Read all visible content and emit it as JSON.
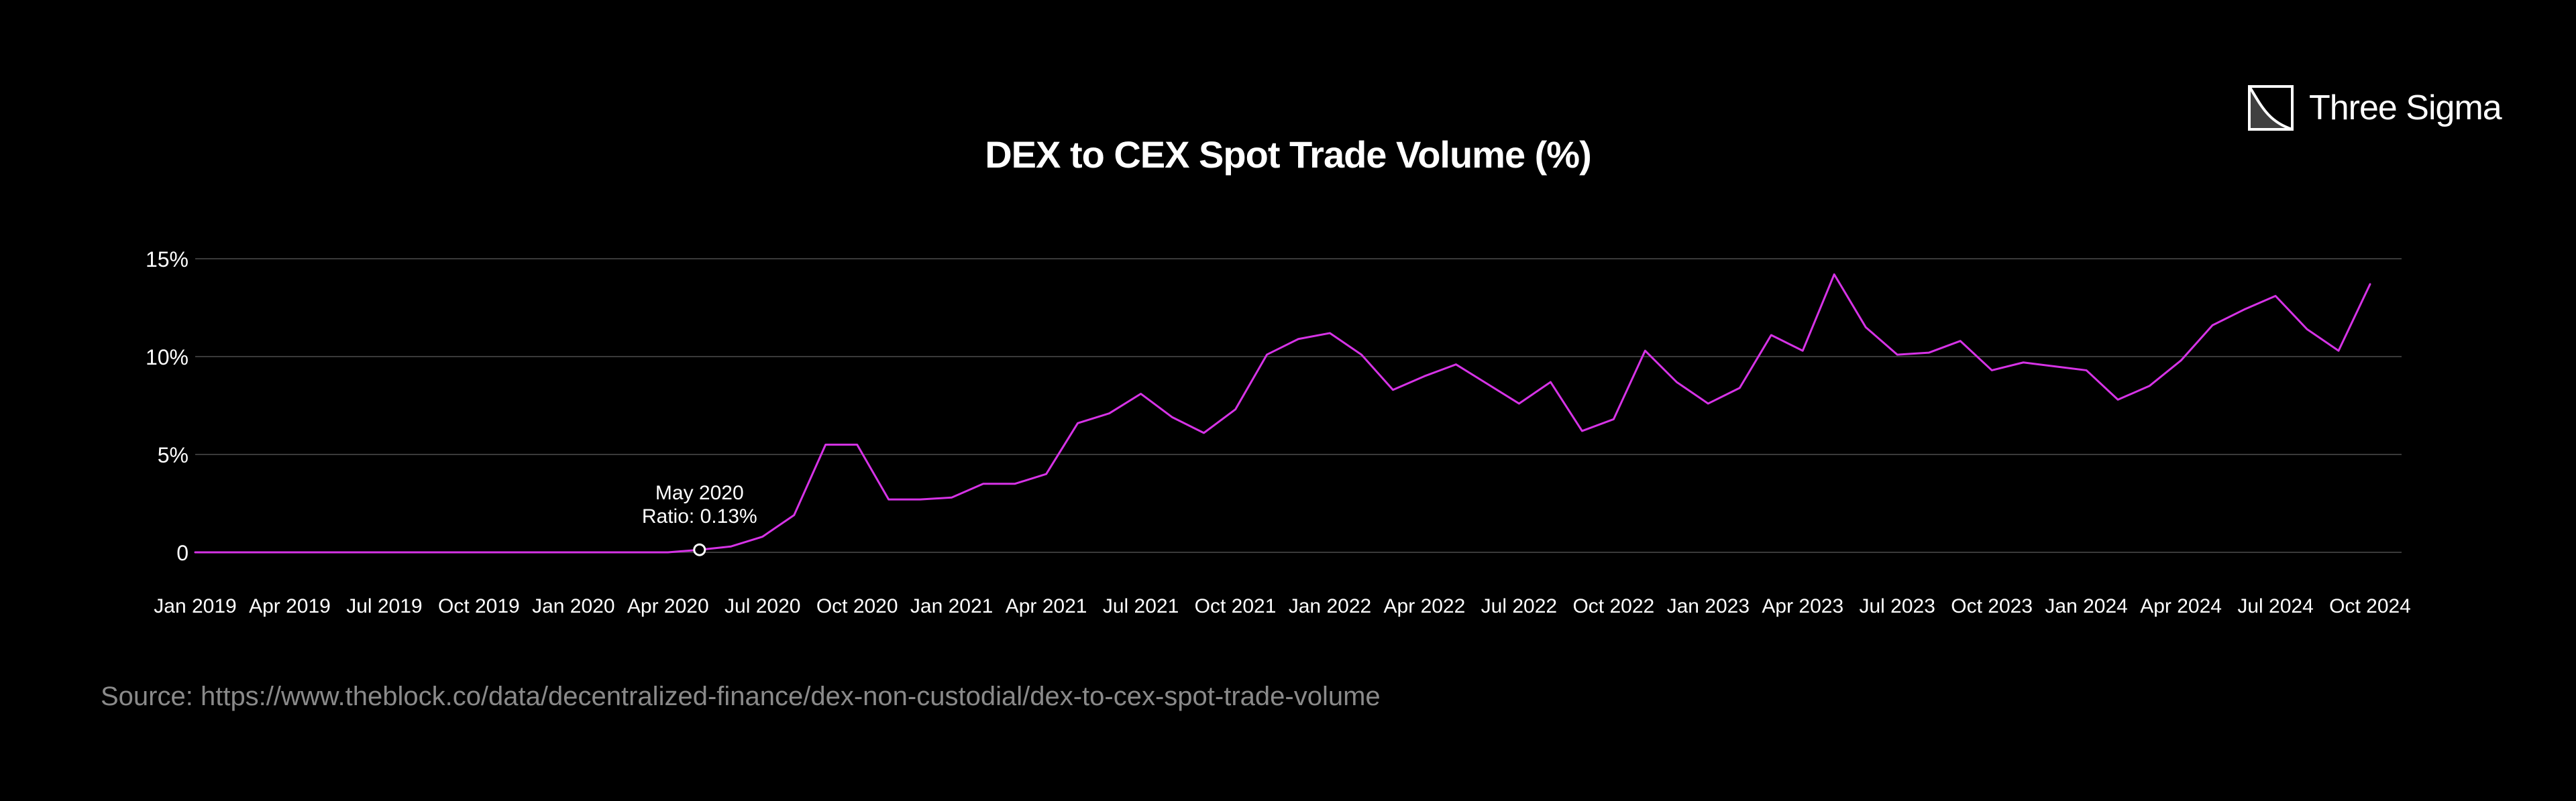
{
  "brand": {
    "name": "Three Sigma",
    "logo_icon": "three-sigma-logo-icon"
  },
  "source_text": "Source: https://www.theblock.co/data/decentralized-finance/dex-non-custodial/dex-to-cex-spot-trade-volume",
  "colors": {
    "background": "#000000",
    "line": "#d633e6",
    "grid": "#3a3a3a",
    "text": "#ffffff",
    "muted": "#8a8a8a"
  },
  "chart_data": {
    "type": "line",
    "title": "DEX to CEX Spot Trade Volume (%)",
    "xlabel": "",
    "ylabel": "",
    "ylim": [
      0,
      15
    ],
    "yticks": [
      {
        "value": 0,
        "label": "0"
      },
      {
        "value": 5,
        "label": "5%"
      },
      {
        "value": 10,
        "label": "10%"
      },
      {
        "value": 15,
        "label": "15%"
      }
    ],
    "grid": true,
    "x_tick_labels": [
      "Jan 2019",
      "Apr 2019",
      "Jul 2019",
      "Oct 2019",
      "Jan 2020",
      "Apr 2020",
      "Jul 2020",
      "Oct 2020",
      "Jan 2021",
      "Apr 2021",
      "Jul 2021",
      "Oct 2021",
      "Jan 2022",
      "Apr 2022",
      "Jul 2022",
      "Oct 2022",
      "Jan 2023",
      "Apr 2023",
      "Jul 2023",
      "Oct 2023",
      "Jan 2024",
      "Apr 2024",
      "Jul 2024",
      "Oct 2024"
    ],
    "x": [
      "Jan 2019",
      "Feb 2019",
      "Mar 2019",
      "Apr 2019",
      "May 2019",
      "Jun 2019",
      "Jul 2019",
      "Aug 2019",
      "Sep 2019",
      "Oct 2019",
      "Nov 2019",
      "Dec 2019",
      "Jan 2020",
      "Feb 2020",
      "Mar 2020",
      "Apr 2020",
      "May 2020",
      "Jun 2020",
      "Jul 2020",
      "Aug 2020",
      "Sep 2020",
      "Oct 2020",
      "Nov 2020",
      "Dec 2020",
      "Jan 2021",
      "Feb 2021",
      "Mar 2021",
      "Apr 2021",
      "May 2021",
      "Jun 2021",
      "Jul 2021",
      "Aug 2021",
      "Sep 2021",
      "Oct 2021",
      "Nov 2021",
      "Dec 2021",
      "Jan 2022",
      "Feb 2022",
      "Mar 2022",
      "Apr 2022",
      "May 2022",
      "Jun 2022",
      "Jul 2022",
      "Aug 2022",
      "Sep 2022",
      "Oct 2022",
      "Nov 2022",
      "Dec 2022",
      "Jan 2023",
      "Feb 2023",
      "Mar 2023",
      "Apr 2023",
      "May 2023",
      "Jun 2023",
      "Jul 2023",
      "Aug 2023",
      "Sep 2023",
      "Oct 2023",
      "Nov 2023",
      "Dec 2023",
      "Jan 2024",
      "Feb 2024",
      "Mar 2024",
      "Apr 2024",
      "May 2024",
      "Jun 2024",
      "Jul 2024",
      "Aug 2024",
      "Sep 2024",
      "Oct 2024",
      "Nov 2024"
    ],
    "series": [
      {
        "values": [
          0.0,
          0.0,
          0.0,
          0.0,
          0.0,
          0.0,
          0.0,
          0.0,
          0.0,
          0.0,
          0.0,
          0.0,
          0.0,
          0.0,
          0.0,
          0.0,
          0.13,
          0.3,
          0.8,
          1.9,
          5.5,
          5.5,
          2.7,
          2.7,
          2.8,
          3.5,
          3.5,
          4.0,
          6.6,
          7.1,
          8.1,
          6.9,
          6.1,
          7.3,
          10.1,
          10.9,
          11.2,
          10.1,
          8.3,
          9.0,
          9.6,
          8.6,
          7.6,
          8.7,
          6.2,
          6.8,
          10.3,
          8.7,
          7.6,
          8.4,
          11.1,
          10.3,
          14.2,
          11.5,
          10.1,
          10.2,
          10.8,
          9.3,
          9.7,
          9.5,
          9.3,
          7.8,
          8.5,
          9.8,
          11.6,
          12.4,
          13.1,
          11.4,
          10.3,
          13.7,
          null
        ]
      }
    ],
    "annotations": [
      {
        "x": "May 2020",
        "y": 0.13,
        "lines": [
          "May 2020",
          "Ratio: 0.13%"
        ]
      }
    ]
  }
}
